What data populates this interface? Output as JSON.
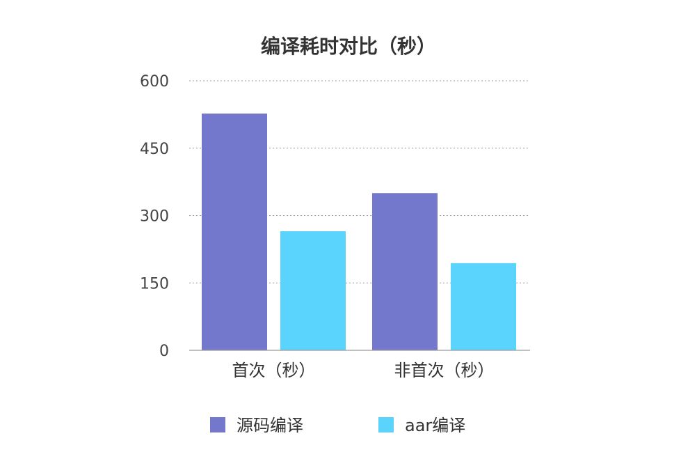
{
  "chart_data": {
    "type": "bar",
    "title": "编译耗时对比（秒）",
    "xlabel": "",
    "ylabel": "",
    "categories": [
      "首次（秒）",
      "非首次（秒）"
    ],
    "series": [
      {
        "name": "源码编译",
        "values": [
          527,
          350
        ],
        "color": "#7478CC"
      },
      {
        "name": "aar编译",
        "values": [
          265,
          194
        ],
        "color": "#5AD3FD"
      }
    ],
    "ylim": [
      0,
      600
    ],
    "yticks": [
      0,
      150,
      300,
      450,
      600
    ],
    "grid": true,
    "legend_position": "bottom"
  }
}
